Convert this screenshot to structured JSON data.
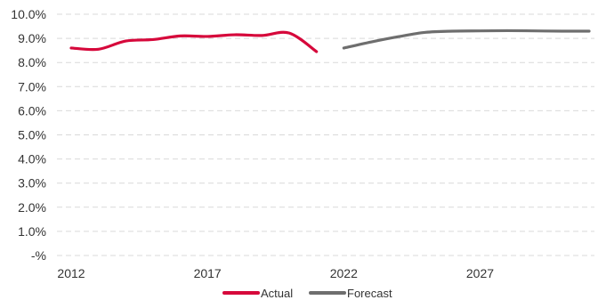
{
  "chart_data": {
    "type": "line",
    "x_ticks": [
      2012,
      2017,
      2022,
      2027
    ],
    "y_ticks": [
      0,
      0.01,
      0.02,
      0.03,
      0.04,
      0.05,
      0.06,
      0.07,
      0.08,
      0.09,
      0.1
    ],
    "y_tick_labels": [
      "-%",
      "1.0%",
      "2.0%",
      "3.0%",
      "4.0%",
      "5.0%",
      "6.0%",
      "7.0%",
      "8.0%",
      "9.0%",
      "10.0%"
    ],
    "xlim": [
      2012,
      2031
    ],
    "ylim": [
      0,
      0.1
    ],
    "grid": "horizontal dashed",
    "legend_position": "bottom",
    "series": [
      {
        "name": "Actual",
        "color": "#d6083b",
        "x": [
          2012,
          2013,
          2014,
          2015,
          2016,
          2017,
          2018,
          2019,
          2020,
          2021
        ],
        "y": [
          0.086,
          0.0855,
          0.0889,
          0.0895,
          0.091,
          0.0908,
          0.0915,
          0.0912,
          0.0922,
          0.0845
        ]
      },
      {
        "name": "Forecast",
        "color": "#6e6e6e",
        "x": [
          2022,
          2023,
          2024,
          2025,
          2026,
          2027,
          2028,
          2029,
          2030,
          2031
        ],
        "y": [
          0.086,
          0.0885,
          0.0907,
          0.0925,
          0.093,
          0.0931,
          0.0932,
          0.0931,
          0.093,
          0.093
        ]
      }
    ]
  }
}
